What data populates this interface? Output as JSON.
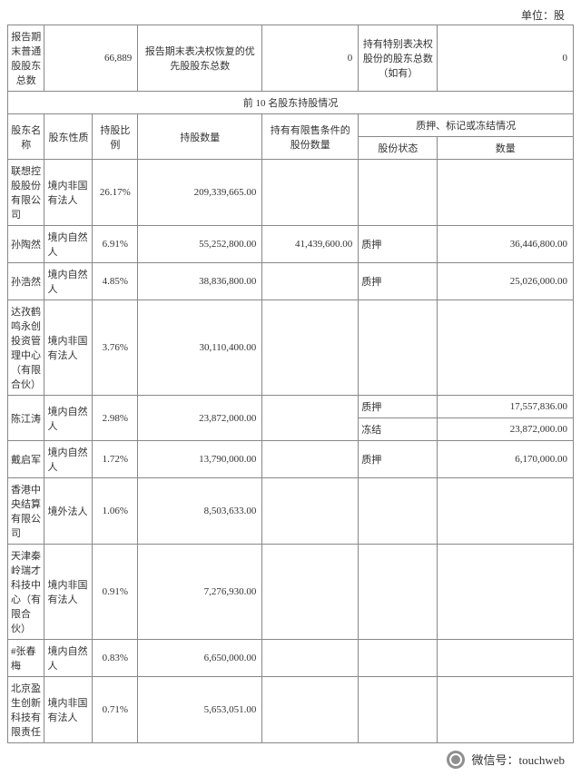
{
  "unit_label": "单位：股",
  "top_summary": {
    "col1_label": "报告期末普通股股东总数",
    "col1_value": "66,889",
    "col2_label": "报告期末表决权恢复的优先股股东总数",
    "col2_value": "0",
    "col3_label": "持有特别表决权股份的股东总数（如有）",
    "col3_value": "0"
  },
  "section_title": "前 10 名股东持股情况",
  "headers": {
    "name": "股东名称",
    "nature": "股东性质",
    "pct": "持股比例",
    "hold": "持股数量",
    "restricted": "持有有限售条件的股份数量",
    "pledge_group": "质押、标记或冻结情况",
    "pledge_status": "股份状态",
    "pledge_qty": "数量"
  },
  "rows": [
    {
      "name": "联想控股股份有限公司",
      "nature": "境内非国有法人",
      "pct": "26.17%",
      "hold": "209,339,665.00",
      "restricted": "",
      "pledges": []
    },
    {
      "name": "孙陶然",
      "nature": "境内自然人",
      "pct": "6.91%",
      "hold": "55,252,800.00",
      "restricted": "41,439,600.00",
      "pledges": [
        {
          "status": "质押",
          "qty": "36,446,800.00"
        }
      ]
    },
    {
      "name": "孙浩然",
      "nature": "境内自然人",
      "pct": "4.85%",
      "hold": "38,836,800.00",
      "restricted": "",
      "pledges": [
        {
          "status": "质押",
          "qty": "25,026,000.00"
        }
      ]
    },
    {
      "name": "达孜鹤鸣永创投资管理中心（有限合伙）",
      "nature": "境内非国有法人",
      "pct": "3.76%",
      "hold": "30,110,400.00",
      "restricted": "",
      "pledges": []
    },
    {
      "name": "陈江涛",
      "nature": "境内自然人",
      "pct": "2.98%",
      "hold": "23,872,000.00",
      "restricted": "",
      "pledges": [
        {
          "status": "质押",
          "qty": "17,557,836.00"
        },
        {
          "status": "冻结",
          "qty": "23,872,000.00"
        }
      ]
    },
    {
      "name": "戴启军",
      "nature": "境内自然人",
      "pct": "1.72%",
      "hold": "13,790,000.00",
      "restricted": "",
      "pledges": [
        {
          "status": "质押",
          "qty": "6,170,000.00"
        }
      ]
    },
    {
      "name": "香港中央结算有限公司",
      "nature": "境外法人",
      "pct": "1.06%",
      "hold": "8,503,633.00",
      "restricted": "",
      "pledges": []
    },
    {
      "name": "天津秦岭瑞才科技中心（有限合伙）",
      "nature": "境内非国有法人",
      "pct": "0.91%",
      "hold": "7,276,930.00",
      "restricted": "",
      "pledges": []
    },
    {
      "name": "#张春梅",
      "nature": "境内自然人",
      "pct": "0.83%",
      "hold": "6,650,000.00",
      "restricted": "",
      "pledges": []
    },
    {
      "name": "北京盈生创新科技有限责任",
      "nature": "境内非国有法人",
      "pct": "0.71%",
      "hold": "5,653,051.00",
      "restricted": "",
      "pledges": []
    }
  ],
  "footer": {
    "label": "微信号：",
    "account": "touchweb"
  }
}
